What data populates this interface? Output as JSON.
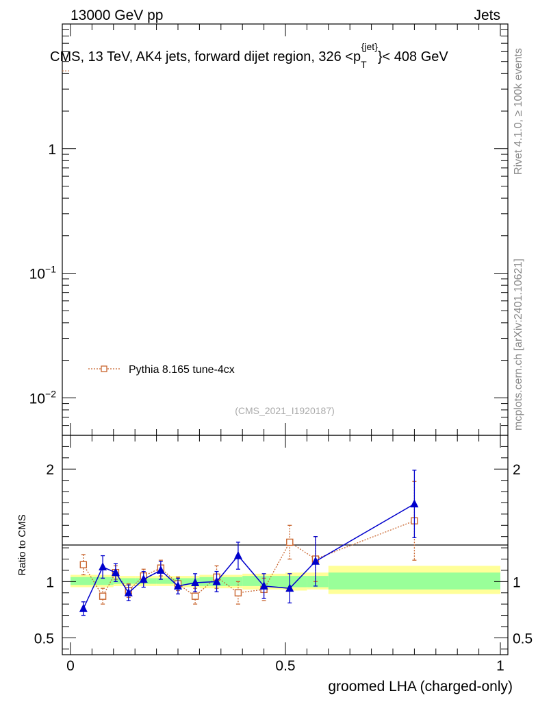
{
  "header": {
    "left": "13000 GeV pp",
    "right": "Jets"
  },
  "side_labels": {
    "rivet": "Rivet 4.1.0, ≥ 100k events",
    "source": "mcplots.cern.ch [arXiv:2401.10621]"
  },
  "colors": {
    "mc": "#c8642d",
    "data": "#0000cc",
    "band_inner": "#99ff99",
    "band_outer": "#ffff99"
  },
  "chart_data": [
    {
      "type": "line",
      "panel": "main",
      "title": "CMS, 13 TeV, AK4 jets, forward dijet region, 326 <p_T^{jet}< 408 GeV",
      "title_parts": {
        "prefix": "CMS, 13 TeV, AK4 jets, forward dijet region, 326 <p",
        "sub": "T",
        "sup": "{jet}",
        "suffix": "}< 408 GeV"
      },
      "yscale": "log",
      "ylim": [
        0.005,
        10
      ],
      "xlim": [
        -0.02,
        1.02
      ],
      "yticks": [
        {
          "value": 1,
          "base": "1",
          "exp": ""
        },
        {
          "value": 0.1,
          "base": "10",
          "exp": "−1"
        },
        {
          "value": 0.01,
          "base": "10",
          "exp": "−2"
        }
      ],
      "legend": [
        {
          "name": "Pythia 8.165 tune-4cx",
          "marker": "open-square",
          "style": "dotted"
        }
      ],
      "watermark": "(CMS_2021_I1920187)",
      "series_fragment": {
        "name": "Pythia 8.165 tune-4cx",
        "x": [
          -0.02,
          0.0
        ],
        "y": [
          4.2,
          4.2
        ]
      }
    },
    {
      "type": "line",
      "panel": "ratio",
      "ylabel": "Ratio to CMS",
      "xlabel": "groomed LHA (charged-only)",
      "ylim": [
        0.35,
        2.3
      ],
      "xlim": [
        -0.02,
        1.02
      ],
      "yticks": [
        "0.5",
        "1",
        "2"
      ],
      "xticks": [
        "0",
        "0.5",
        "1"
      ],
      "bands": [
        {
          "x0": 0.0,
          "x1": 0.05,
          "inner": [
            0.97,
            1.04
          ],
          "outer": [
            0.95,
            1.06
          ]
        },
        {
          "x0": 0.05,
          "x1": 0.1,
          "inner": [
            0.97,
            1.04
          ],
          "outer": [
            0.95,
            1.06
          ]
        },
        {
          "x0": 0.1,
          "x1": 0.15,
          "inner": [
            0.98,
            1.03
          ],
          "outer": [
            0.96,
            1.05
          ]
        },
        {
          "x0": 0.15,
          "x1": 0.2,
          "inner": [
            0.98,
            1.03
          ],
          "outer": [
            0.96,
            1.05
          ]
        },
        {
          "x0": 0.2,
          "x1": 0.25,
          "inner": [
            0.98,
            1.03
          ],
          "outer": [
            0.96,
            1.05
          ]
        },
        {
          "x0": 0.25,
          "x1": 0.3,
          "inner": [
            0.97,
            1.03
          ],
          "outer": [
            0.95,
            1.05
          ]
        },
        {
          "x0": 0.3,
          "x1": 0.35,
          "inner": [
            0.96,
            1.04
          ],
          "outer": [
            0.94,
            1.06
          ]
        },
        {
          "x0": 0.35,
          "x1": 0.4,
          "inner": [
            0.96,
            1.04
          ],
          "outer": [
            0.94,
            1.06
          ]
        },
        {
          "x0": 0.4,
          "x1": 0.45,
          "inner": [
            0.96,
            1.05
          ],
          "outer": [
            0.93,
            1.07
          ]
        },
        {
          "x0": 0.45,
          "x1": 0.5,
          "inner": [
            0.95,
            1.05
          ],
          "outer": [
            0.93,
            1.07
          ]
        },
        {
          "x0": 0.5,
          "x1": 0.55,
          "inner": [
            0.95,
            1.05
          ],
          "outer": [
            0.92,
            1.08
          ]
        },
        {
          "x0": 0.55,
          "x1": 0.6,
          "inner": [
            0.95,
            1.05
          ],
          "outer": [
            0.93,
            1.08
          ]
        },
        {
          "x0": 0.6,
          "x1": 1.0,
          "inner": [
            0.93,
            1.08
          ],
          "outer": [
            0.89,
            1.14
          ]
        }
      ],
      "series": [
        {
          "name": "Pythia 8.165 tune-4cx",
          "style": "dotted",
          "marker": "open-square",
          "x": [
            0.03,
            0.075,
            0.105,
            0.135,
            0.17,
            0.21,
            0.25,
            0.29,
            0.34,
            0.39,
            0.45,
            0.51,
            0.57,
            0.8
          ],
          "y": [
            1.15,
            0.87,
            1.08,
            0.92,
            1.05,
            1.12,
            0.98,
            0.87,
            1.04,
            0.9,
            0.93,
            1.35,
            1.2,
            1.54
          ],
          "err": [
            0.09,
            0.07,
            0.06,
            0.06,
            0.06,
            0.07,
            0.06,
            0.07,
            0.1,
            0.1,
            0.1,
            0.15,
            0.2,
            0.35
          ]
        },
        {
          "name": "CMS data ratio",
          "style": "solid",
          "marker": "filled-triangle",
          "x": [
            0.03,
            0.075,
            0.105,
            0.135,
            0.17,
            0.21,
            0.25,
            0.29,
            0.34,
            0.39,
            0.45,
            0.51,
            0.57,
            0.8
          ],
          "y": [
            0.76,
            1.13,
            1.08,
            0.9,
            1.02,
            1.1,
            0.96,
            0.99,
            1.0,
            1.23,
            0.96,
            0.94,
            1.18,
            1.69
          ],
          "err": [
            0.06,
            0.1,
            0.08,
            0.07,
            0.07,
            0.08,
            0.07,
            0.08,
            0.09,
            0.12,
            0.11,
            0.13,
            0.22,
            0.3
          ]
        }
      ]
    }
  ]
}
